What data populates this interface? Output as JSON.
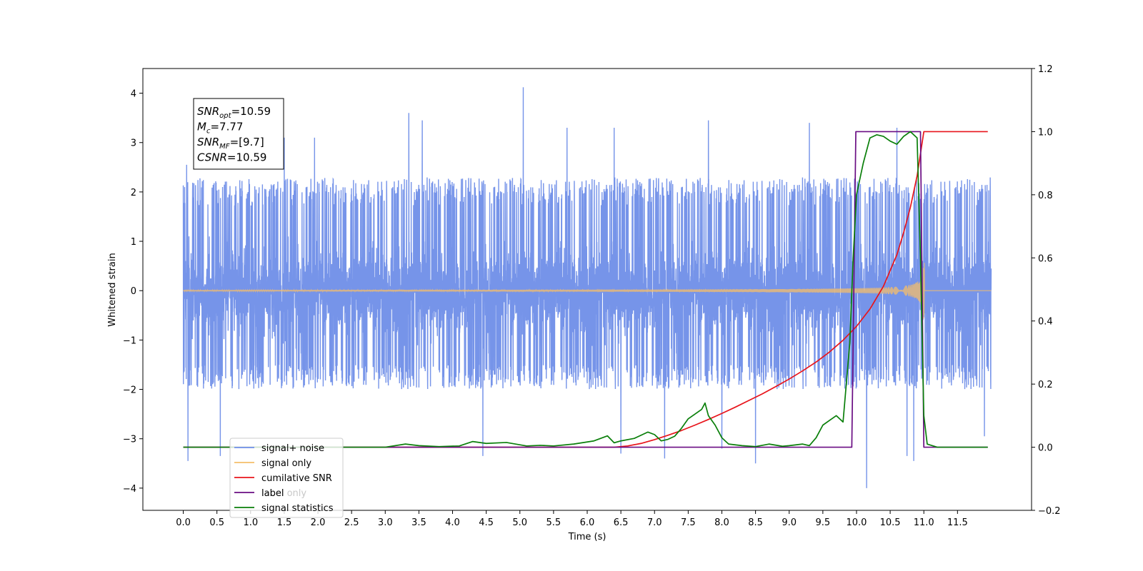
{
  "chart_data": {
    "type": "line",
    "title": "",
    "xlabel": "Time (s)",
    "ylabel": "Whitened strain",
    "y2label": "",
    "xlim": [
      -0.6,
      12.6
    ],
    "ylim": [
      -4.45,
      4.5
    ],
    "y2lim": [
      -0.2,
      1.2
    ],
    "x_ticks": [
      0.0,
      0.5,
      1.0,
      1.5,
      2.0,
      2.5,
      3.0,
      3.5,
      4.0,
      4.5,
      5.0,
      5.5,
      6.0,
      6.5,
      7.0,
      7.5,
      8.0,
      8.5,
      9.0,
      9.5,
      10.0,
      10.5,
      11.0,
      11.5
    ],
    "x_tick_labels": [
      "0.0",
      "0.5",
      "1.0",
      "1.5",
      "2.0",
      "2.5",
      "3.0",
      "3.5",
      "4.0",
      "4.5",
      "5.0",
      "5.5",
      "6.0",
      "6.5",
      "7.0",
      "7.5",
      "8.0",
      "8.5",
      "9.0",
      "9.5",
      "10.0",
      "10.5",
      "11.0",
      "11.5"
    ],
    "y_ticks": [
      -4,
      -3,
      -2,
      -1,
      0,
      1,
      2,
      3,
      4
    ],
    "y_tick_labels": [
      "−4",
      "−3",
      "−2",
      "−1",
      "0",
      "1",
      "2",
      "3",
      "4"
    ],
    "y2_ticks": [
      -0.2,
      0.0,
      0.2,
      0.4,
      0.6,
      0.8,
      1.0,
      1.2
    ],
    "y2_tick_labels": [
      "−0.2",
      "0.0",
      "0.2",
      "0.4",
      "0.6",
      "0.8",
      "1.0",
      "1.2"
    ],
    "grid": false,
    "legend_position": "lower-left",
    "annotation": {
      "lines": [
        {
          "main": "SNR",
          "sub": "opt",
          "rest": "=10.59"
        },
        {
          "main": "M",
          "sub": "c",
          "rest": "=7.77"
        },
        {
          "main": "SNR",
          "sub": "MF",
          "rest": "=[9.7]"
        },
        {
          "main": "CSNR",
          "sub": "",
          "rest": "=10.59"
        }
      ]
    },
    "series": [
      {
        "name": "signal+ noise",
        "axis": "left",
        "color": "#6f8ee8",
        "kind": "noise",
        "x_range": [
          0.0,
          12.0
        ],
        "typical_range": [
          -2.0,
          2.3
        ],
        "peaks": [
          [
            0.05,
            2.55
          ],
          [
            0.07,
            -3.45
          ],
          [
            0.55,
            -3.35
          ],
          [
            1.5,
            3.1
          ],
          [
            1.95,
            3.1
          ],
          [
            3.35,
            3.6
          ],
          [
            3.55,
            3.45
          ],
          [
            4.45,
            -3.35
          ],
          [
            5.05,
            4.12
          ],
          [
            5.7,
            3.3
          ],
          [
            6.4,
            3.3
          ],
          [
            6.5,
            -3.3
          ],
          [
            7.15,
            -3.4
          ],
          [
            7.8,
            3.45
          ],
          [
            8.0,
            -3.2
          ],
          [
            8.5,
            -3.5
          ],
          [
            9.3,
            3.4
          ],
          [
            10.15,
            -4.0
          ],
          [
            10.6,
            3.3
          ],
          [
            10.75,
            -3.35
          ],
          [
            10.85,
            -3.45
          ],
          [
            11.9,
            3.1
          ],
          [
            11.9,
            -2.95
          ]
        ]
      },
      {
        "name": "signal only",
        "axis": "left",
        "color": "#f5be6a",
        "kind": "chirp",
        "x_range": [
          0.0,
          12.0
        ],
        "merger_time": 11.0,
        "peak_amplitude": 1.3
      },
      {
        "name": "cumilative SNR",
        "axis": "right",
        "color": "#e8141b",
        "x": [
          0.0,
          6.4,
          6.6,
          6.8,
          7.0,
          7.2,
          7.4,
          7.6,
          7.8,
          8.0,
          8.2,
          8.4,
          8.6,
          8.8,
          9.0,
          9.2,
          9.4,
          9.6,
          9.8,
          10.0,
          10.2,
          10.4,
          10.6,
          10.7,
          10.8,
          10.9,
          10.95,
          11.0,
          11.05,
          11.5,
          11.95
        ],
        "y": [
          0.0,
          0.0,
          0.004,
          0.012,
          0.024,
          0.038,
          0.053,
          0.07,
          0.088,
          0.107,
          0.127,
          0.148,
          0.169,
          0.192,
          0.216,
          0.242,
          0.27,
          0.302,
          0.339,
          0.383,
          0.438,
          0.51,
          0.61,
          0.68,
          0.76,
          0.86,
          0.93,
          1.0,
          1.0,
          1.0,
          1.0
        ]
      },
      {
        "name": "label",
        "axis": "right",
        "color": "#6a0d83",
        "x": [
          0.0,
          9.93,
          9.99,
          10.95,
          11.0,
          11.95
        ],
        "y": [
          0.0,
          0.0,
          1.0,
          1.0,
          0.0,
          0.0
        ]
      },
      {
        "name": "signal statistics",
        "axis": "right",
        "color": "#0a7f0a",
        "x": [
          0.0,
          1.0,
          2.0,
          3.0,
          3.3,
          3.5,
          3.8,
          4.1,
          4.3,
          4.5,
          4.8,
          5.1,
          5.3,
          5.5,
          5.8,
          6.1,
          6.3,
          6.4,
          6.5,
          6.7,
          6.9,
          7.0,
          7.1,
          7.2,
          7.3,
          7.4,
          7.5,
          7.6,
          7.7,
          7.75,
          7.8,
          7.9,
          8.0,
          8.1,
          8.3,
          8.5,
          8.7,
          8.9,
          9.0,
          9.2,
          9.3,
          9.4,
          9.5,
          9.6,
          9.7,
          9.8,
          9.9,
          9.95,
          10.0,
          10.05,
          10.1,
          10.2,
          10.3,
          10.4,
          10.5,
          10.6,
          10.7,
          10.8,
          10.85,
          10.9,
          10.95,
          11.0,
          11.05,
          11.2,
          11.95
        ],
        "y": [
          0.0,
          0.0,
          0.0,
          0.0,
          0.01,
          0.005,
          0.002,
          0.004,
          0.018,
          0.012,
          0.015,
          0.004,
          0.006,
          0.004,
          0.01,
          0.02,
          0.036,
          0.014,
          0.02,
          0.028,
          0.048,
          0.04,
          0.02,
          0.025,
          0.035,
          0.06,
          0.09,
          0.105,
          0.12,
          0.14,
          0.1,
          0.07,
          0.03,
          0.01,
          0.005,
          0.002,
          0.01,
          0.003,
          0.005,
          0.01,
          0.005,
          0.03,
          0.07,
          0.085,
          0.1,
          0.08,
          0.33,
          0.6,
          0.8,
          0.85,
          0.9,
          0.98,
          0.99,
          0.985,
          0.97,
          0.96,
          0.985,
          1.0,
          0.99,
          0.98,
          0.6,
          0.1,
          0.01,
          0.0,
          0.0
        ]
      }
    ],
    "legend_extra_text": "label only"
  }
}
